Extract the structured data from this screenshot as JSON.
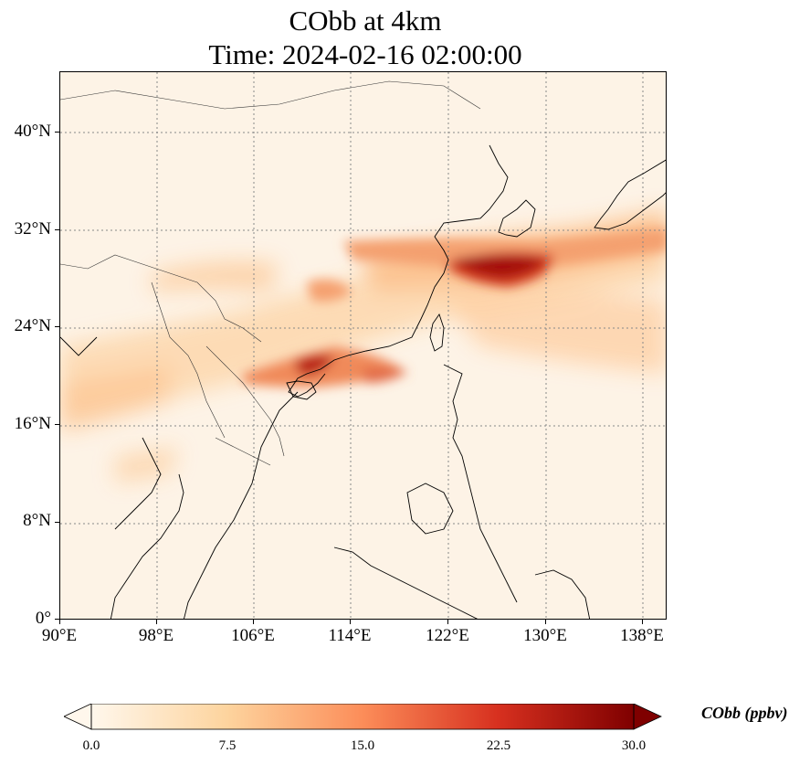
{
  "title": {
    "line1": "CObb at 4km",
    "line2": "Time: 2024-02-16 02:00:00"
  },
  "map": {
    "extent": {
      "lon_min": 90,
      "lon_max": 140,
      "lat_min": 0,
      "lat_max": 45
    },
    "lat_ticks": [
      {
        "value": 0,
        "label": "0°"
      },
      {
        "value": 8,
        "label": "8°N"
      },
      {
        "value": 16,
        "label": "16°N"
      },
      {
        "value": 24,
        "label": "24°N"
      },
      {
        "value": 32,
        "label": "32°N"
      },
      {
        "value": 40,
        "label": "40°N"
      }
    ],
    "lon_ticks": [
      {
        "value": 90,
        "label": "90°E"
      },
      {
        "value": 98,
        "label": "98°E"
      },
      {
        "value": 106,
        "label": "106°E"
      },
      {
        "value": 114,
        "label": "114°E"
      },
      {
        "value": 122,
        "label": "122°E"
      },
      {
        "value": 130,
        "label": "130°E"
      },
      {
        "value": 138,
        "label": "138°E"
      }
    ],
    "gridlines": "dotted",
    "background_color": "#fdf3e6",
    "coastline_color": "#000000",
    "border_color": "#333333"
  },
  "colorbar": {
    "label": "CObb (ppbv)",
    "min": 0.0,
    "max": 30.0,
    "tick_labels": [
      "0.0",
      "7.5",
      "15.0",
      "22.5",
      "30.0"
    ],
    "extend": "both",
    "colormap": "OrRd",
    "stops": [
      "#fff7ec",
      "#fdd49e",
      "#fc8d59",
      "#d7301f",
      "#7f0000"
    ]
  }
}
